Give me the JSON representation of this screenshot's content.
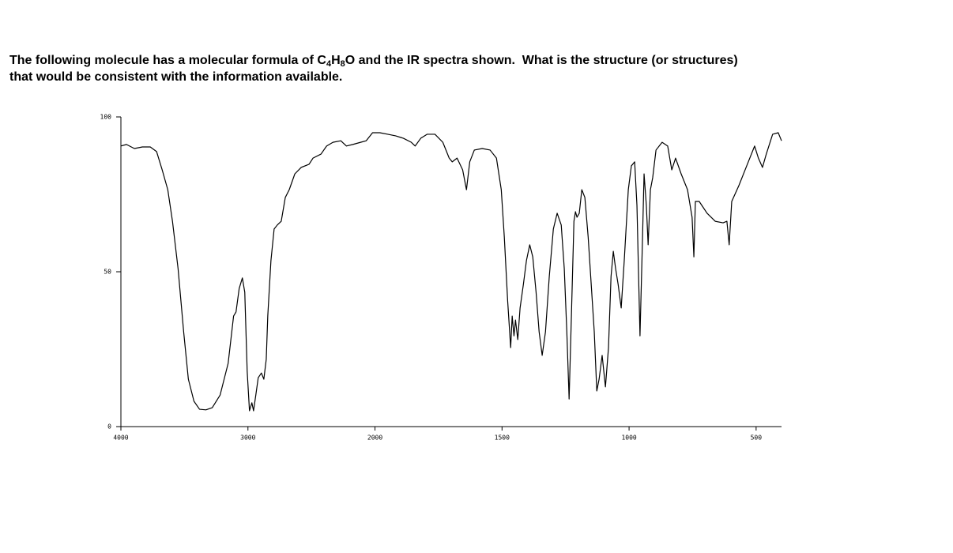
{
  "question": {
    "segments": [
      "The following molecule has a molecular formula of C",
      "4",
      "H",
      "8",
      "O and the IR spectra shown.  What is the structure (or structures)\nthat would be consistent with the information available."
    ]
  },
  "chart_data": {
    "type": "line",
    "color": "#000000",
    "xlim": [
      4000,
      400
    ],
    "xscale": "split",
    "xbreak": 2000,
    "xbreak_ratio": 2,
    "xticks": [
      4000,
      3000,
      2000,
      1500,
      1000,
      500
    ],
    "ylim": [
      0,
      100
    ],
    "yticks": [
      0,
      50,
      100
    ],
    "x": [
      4000,
      3956,
      3894,
      3831,
      3769,
      3719,
      3675,
      3631,
      3594,
      3550,
      3506,
      3469,
      3425,
      3381,
      3331,
      3281,
      3219,
      3156,
      3113,
      3094,
      3069,
      3044,
      3025,
      3006,
      2988,
      2969,
      2956,
      2938,
      2919,
      2894,
      2875,
      2856,
      2844,
      2819,
      2794,
      2769,
      2738,
      2706,
      2675,
      2631,
      2581,
      2519,
      2488,
      2425,
      2381,
      2331,
      2269,
      2225,
      2175,
      2113,
      2069,
      2019,
      1981,
      1950,
      1919,
      1888,
      1857,
      1842,
      1820,
      1795,
      1764,
      1733,
      1708,
      1696,
      1677,
      1655,
      1640,
      1627,
      1609,
      1578,
      1547,
      1522,
      1503,
      1491,
      1478,
      1466,
      1460,
      1453,
      1447,
      1438,
      1429,
      1416,
      1404,
      1391,
      1379,
      1366,
      1354,
      1342,
      1329,
      1314,
      1298,
      1283,
      1267,
      1255,
      1245,
      1236,
      1227,
      1217,
      1211,
      1205,
      1196,
      1186,
      1174,
      1161,
      1149,
      1137,
      1127,
      1118,
      1106,
      1093,
      1081,
      1071,
      1062,
      1053,
      1043,
      1031,
      1019,
      1003,
      991,
      978,
      969,
      957,
      947,
      941,
      932,
      925,
      916,
      907,
      894,
      870,
      848,
      832,
      817,
      795,
      770,
      752,
      745,
      739,
      724,
      693,
      661,
      630,
      615,
      606,
      596,
      568,
      537,
      506,
      491,
      475,
      460,
      435,
      413,
      400
    ],
    "values": [
      90.6,
      91.1,
      89.8,
      90.3,
      90.3,
      88.8,
      82.9,
      76.5,
      66.3,
      51.0,
      30.6,
      15.3,
      8.2,
      5.6,
      5.4,
      6.1,
      10.2,
      20.4,
      35.7,
      37.0,
      44.6,
      48.0,
      43.4,
      17.9,
      5.1,
      7.7,
      5.1,
      10.2,
      15.8,
      17.3,
      15.3,
      21.7,
      35.7,
      53.6,
      63.8,
      65.1,
      66.3,
      74.0,
      76.5,
      81.6,
      83.7,
      84.7,
      86.7,
      88.0,
      90.6,
      91.8,
      92.3,
      90.6,
      91.1,
      91.8,
      92.3,
      94.9,
      94.9,
      94.4,
      93.9,
      93.1,
      91.8,
      90.6,
      93.1,
      94.4,
      94.4,
      91.8,
      86.7,
      85.5,
      86.7,
      82.9,
      76.5,
      85.5,
      89.3,
      89.8,
      89.3,
      86.7,
      76.5,
      61.2,
      40.8,
      25.5,
      35.7,
      29.3,
      34.4,
      28.1,
      38.3,
      45.9,
      53.6,
      58.7,
      54.8,
      43.4,
      30.6,
      23.0,
      30.6,
      48.5,
      63.8,
      68.9,
      65.1,
      51.0,
      30.6,
      8.9,
      35.7,
      66.3,
      69.4,
      67.6,
      68.9,
      76.5,
      74.0,
      61.2,
      45.9,
      30.6,
      11.5,
      15.3,
      23.0,
      12.8,
      25.5,
      48.5,
      56.6,
      51.0,
      45.9,
      38.3,
      53.6,
      76.5,
      84.2,
      85.5,
      71.4,
      29.3,
      61.2,
      81.6,
      71.4,
      58.7,
      76.5,
      80.4,
      89.3,
      91.8,
      90.6,
      82.9,
      86.7,
      81.6,
      76.5,
      67.6,
      54.8,
      72.7,
      72.7,
      68.9,
      66.3,
      65.8,
      66.3,
      58.7,
      72.7,
      77.8,
      84.2,
      90.6,
      86.7,
      83.7,
      88.0,
      94.4,
      94.9,
      92.3
    ]
  }
}
